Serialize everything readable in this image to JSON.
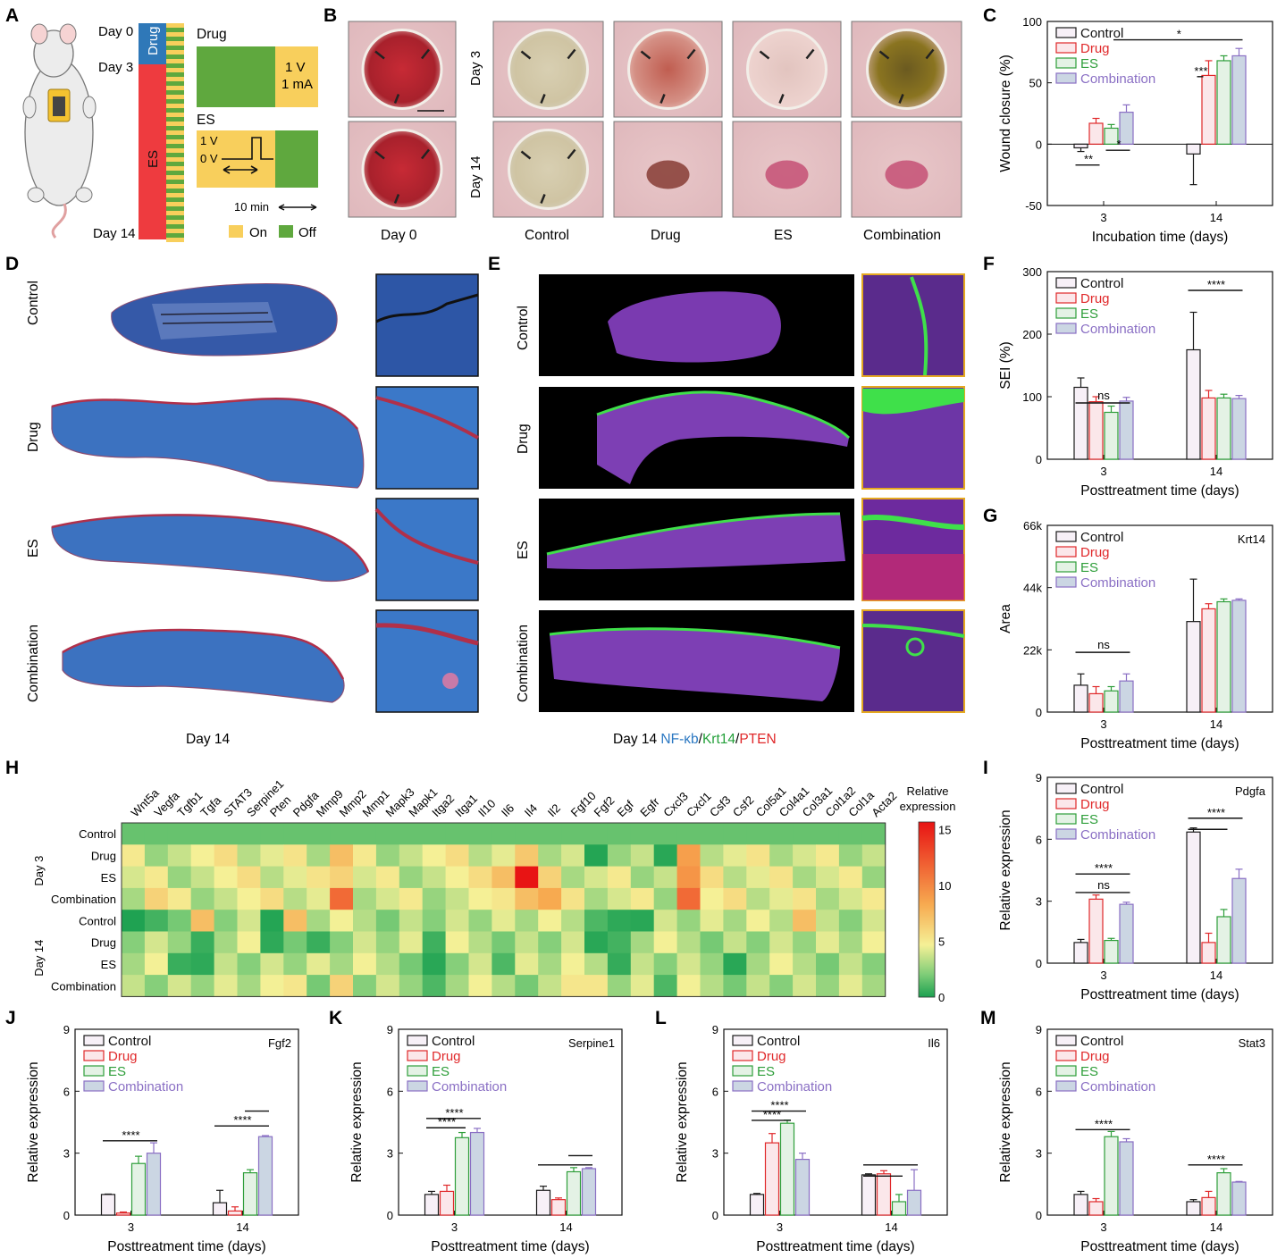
{
  "colors": {
    "control": "#1a1a1a",
    "drug": "#e0282a",
    "es": "#2e9e3a",
    "combination": "#8a6fc4",
    "control_fill": "#f7f0f7",
    "drug_fill": "#fbe7ea",
    "es_fill": "#e4f2e5",
    "comb_fill": "#cbd6e3",
    "on": "#f8cf5c",
    "off": "#5fa83e",
    "drug_phase": "#2f78b8",
    "es_phase": "#ee3b3f"
  },
  "panel_letters": [
    "A",
    "B",
    "C",
    "D",
    "E",
    "F",
    "G",
    "H",
    "I",
    "J",
    "K",
    "L",
    "M"
  ],
  "legend_labels": [
    "Control",
    "Drug",
    "ES",
    "Combination"
  ],
  "panelA": {
    "day_labels": [
      "Day 0",
      "Day 3",
      "Day 14"
    ],
    "phase_labels": [
      "Drug",
      "ES"
    ],
    "drug_title": "Drug",
    "drug_on_v": "1 V",
    "drug_on_i": "1 mA",
    "es_title": "ES",
    "es_v1": "1 V",
    "es_v0": "0 V",
    "scale": "10 min",
    "on_label": "On",
    "off_label": "Off"
  },
  "panelB": {
    "row_labels": [
      "Day 3",
      "Day 14"
    ],
    "col_labels": [
      "Day 0",
      "Control",
      "Drug",
      "ES",
      "Combination"
    ]
  },
  "panelD": {
    "row_labels": [
      "Control",
      "Drug",
      "ES",
      "Combination"
    ],
    "caption": "Day 14"
  },
  "panelE": {
    "row_labels": [
      "Control",
      "Drug",
      "ES",
      "Combination"
    ],
    "caption_prefix": "Day 14 ",
    "stain1": "NF-κb",
    "sep1": "/",
    "stain2": "Krt14",
    "sep2": "/",
    "stain3": "PTEN",
    "stain_colors": [
      "#2b78c2",
      "#24a03a",
      "#e0282a"
    ]
  },
  "panelH": {
    "genes": [
      "Wnt5a",
      "Vegfa",
      "Tgfb1",
      "Tgfa",
      "STAT3",
      "Serpine1",
      "Pten",
      "Pdgfa",
      "Mmp9",
      "Mmp2",
      "Mmp1",
      "Mapk3",
      "Mapk1",
      "Itga2",
      "Itga1",
      "Il10",
      "Il6",
      "Il4",
      "Il2",
      "Fgf10",
      "Fgf2",
      "Egf",
      "Egfr",
      "Cxcl3",
      "Cxcl1",
      "Csf3",
      "Csf2",
      "Col5a1",
      "Col4a1",
      "Col3a1",
      "Col1a2",
      "Col1a",
      "Acta2"
    ],
    "rows": [
      "Control",
      "Drug",
      "ES",
      "Combination",
      "Control",
      "Drug",
      "ES",
      "Combination"
    ],
    "groups": [
      "Day 3",
      "Day 14"
    ],
    "colorbar_title_1": "Relative",
    "colorbar_title_2": "expression",
    "colorbar_ticks": [
      15,
      10,
      5,
      0
    ]
  },
  "chart_data": [
    {
      "panel": "C",
      "type": "bar",
      "title": "",
      "xlabel": "Incubation time (days)",
      "ylabel": "Wound closure (%)",
      "categories": [
        "3",
        "14"
      ],
      "ylim": [
        -50,
        100
      ],
      "yticks": [
        -50,
        0,
        50,
        100
      ],
      "series": [
        {
          "name": "Control",
          "values": [
            -3,
            -8
          ],
          "errors": [
            3,
            25
          ]
        },
        {
          "name": "Drug",
          "values": [
            17,
            56
          ],
          "errors": [
            4,
            12
          ]
        },
        {
          "name": "ES",
          "values": [
            13,
            68
          ],
          "errors": [
            3,
            4
          ]
        },
        {
          "name": "Combination",
          "values": [
            26,
            72
          ],
          "errors": [
            6,
            6
          ]
        }
      ],
      "annotations": [
        "**",
        "*",
        "***",
        "*"
      ]
    },
    {
      "panel": "F",
      "type": "bar",
      "title": "",
      "xlabel": "Posttreatment time (days)",
      "ylabel": "SEI (%)",
      "categories": [
        "3",
        "14"
      ],
      "ylim": [
        0,
        300
      ],
      "yticks": [
        0,
        100,
        200,
        300
      ],
      "series": [
        {
          "name": "Control",
          "values": [
            115,
            175
          ],
          "errors": [
            15,
            60
          ]
        },
        {
          "name": "Drug",
          "values": [
            92,
            98
          ],
          "errors": [
            8,
            12
          ]
        },
        {
          "name": "ES",
          "values": [
            75,
            98
          ],
          "errors": [
            10,
            6
          ]
        },
        {
          "name": "Combination",
          "values": [
            93,
            97
          ],
          "errors": [
            6,
            5
          ]
        }
      ],
      "annotations": [
        "ns",
        "****"
      ]
    },
    {
      "panel": "G",
      "type": "bar",
      "title": "Krt14",
      "xlabel": "Posttreatment time (days)",
      "ylabel": "Area",
      "categories": [
        "3",
        "14"
      ],
      "ylim": [
        0,
        66000
      ],
      "yticks": [
        0,
        22000,
        44000,
        66000
      ],
      "ytick_labels": [
        "0",
        "22k",
        "44k",
        "66k"
      ],
      "series": [
        {
          "name": "Control",
          "values": [
            9500,
            32000
          ],
          "errors": [
            4000,
            15000
          ]
        },
        {
          "name": "Drug",
          "values": [
            6500,
            36500
          ],
          "errors": [
            2500,
            1800
          ]
        },
        {
          "name": "ES",
          "values": [
            7500,
            39000
          ],
          "errors": [
            1500,
            1000
          ]
        },
        {
          "name": "Combination",
          "values": [
            11000,
            39500
          ],
          "errors": [
            2500,
            500
          ]
        }
      ],
      "annotations": [
        "ns"
      ]
    },
    {
      "panel": "I",
      "type": "bar",
      "title": "Pdgfa",
      "xlabel": "Posttreatment time (days)",
      "ylabel": "Relative expression",
      "categories": [
        "3",
        "14"
      ],
      "ylim": [
        0,
        9
      ],
      "yticks": [
        0,
        3,
        6,
        9
      ],
      "series": [
        {
          "name": "Control",
          "values": [
            1,
            6.35
          ],
          "errors": [
            0.15,
            0.2
          ]
        },
        {
          "name": "Drug",
          "values": [
            3.1,
            1.0
          ],
          "errors": [
            0.2,
            0.45
          ]
        },
        {
          "name": "ES",
          "values": [
            1.1,
            2.25
          ],
          "errors": [
            0.1,
            0.35
          ]
        },
        {
          "name": "Combination",
          "values": [
            2.85,
            4.1
          ],
          "errors": [
            0.1,
            0.45
          ]
        }
      ],
      "annotations": [
        "ns",
        "****",
        "****"
      ]
    },
    {
      "panel": "J",
      "type": "bar",
      "title": "Fgf2",
      "xlabel": "Posttreatment time (days)",
      "ylabel": "Relative expression",
      "categories": [
        "3",
        "14"
      ],
      "ylim": [
        0,
        9
      ],
      "yticks": [
        0,
        3,
        6,
        9
      ],
      "series": [
        {
          "name": "Control",
          "values": [
            1,
            0.6
          ],
          "errors": [
            0.02,
            0.6
          ]
        },
        {
          "name": "Drug",
          "values": [
            0.1,
            0.2
          ],
          "errors": [
            0.05,
            0.2
          ]
        },
        {
          "name": "ES",
          "values": [
            2.5,
            2.05
          ],
          "errors": [
            0.35,
            0.15
          ]
        },
        {
          "name": "Combination",
          "values": [
            3.0,
            3.8
          ],
          "errors": [
            0.5,
            0.05
          ]
        }
      ],
      "annotations": [
        "****",
        "****"
      ]
    },
    {
      "panel": "K",
      "type": "bar",
      "title": "Serpine1",
      "xlabel": "Posttreatment time (days)",
      "ylabel": "Relative expression",
      "categories": [
        "3",
        "14"
      ],
      "ylim": [
        0,
        9
      ],
      "yticks": [
        0,
        3,
        6,
        9
      ],
      "series": [
        {
          "name": "Control",
          "values": [
            1.0,
            1.2
          ],
          "errors": [
            0.15,
            0.2
          ]
        },
        {
          "name": "Drug",
          "values": [
            1.15,
            0.75
          ],
          "errors": [
            0.3,
            0.08
          ]
        },
        {
          "name": "ES",
          "values": [
            3.75,
            2.1
          ],
          "errors": [
            0.25,
            0.2
          ]
        },
        {
          "name": "Combination",
          "values": [
            4.0,
            2.25
          ],
          "errors": [
            0.2,
            0.05
          ]
        }
      ],
      "annotations": [
        "****",
        "****"
      ]
    },
    {
      "panel": "L",
      "type": "bar",
      "title": "Il6",
      "xlabel": "Posttreatment time (days)",
      "ylabel": "Relative expression",
      "categories": [
        "3",
        "14"
      ],
      "ylim": [
        0,
        9
      ],
      "yticks": [
        0,
        3,
        6,
        9
      ],
      "series": [
        {
          "name": "Control",
          "values": [
            1.0,
            1.95
          ],
          "errors": [
            0.05,
            0.05
          ]
        },
        {
          "name": "Drug",
          "values": [
            3.5,
            2.0
          ],
          "errors": [
            0.45,
            0.15
          ]
        },
        {
          "name": "ES",
          "values": [
            4.45,
            0.65
          ],
          "errors": [
            0.15,
            0.35
          ]
        },
        {
          "name": "Combination",
          "values": [
            2.7,
            1.2
          ],
          "errors": [
            0.3,
            1.0
          ]
        }
      ],
      "annotations": [
        "****",
        "****"
      ]
    },
    {
      "panel": "M",
      "type": "bar",
      "title": "Stat3",
      "xlabel": "Posttreatment time (days)",
      "ylabel": "Relative expression",
      "categories": [
        "3",
        "14"
      ],
      "ylim": [
        0,
        9
      ],
      "yticks": [
        0,
        3,
        6,
        9
      ],
      "series": [
        {
          "name": "Control",
          "values": [
            1.0,
            0.65
          ],
          "errors": [
            0.15,
            0.1
          ]
        },
        {
          "name": "Drug",
          "values": [
            0.65,
            0.85
          ],
          "errors": [
            0.15,
            0.3
          ]
        },
        {
          "name": "ES",
          "values": [
            3.8,
            2.05
          ],
          "errors": [
            0.25,
            0.2
          ]
        },
        {
          "name": "Combination",
          "values": [
            3.55,
            1.6
          ],
          "errors": [
            0.15,
            0.03
          ]
        }
      ],
      "annotations": [
        "****",
        "****"
      ]
    }
  ]
}
